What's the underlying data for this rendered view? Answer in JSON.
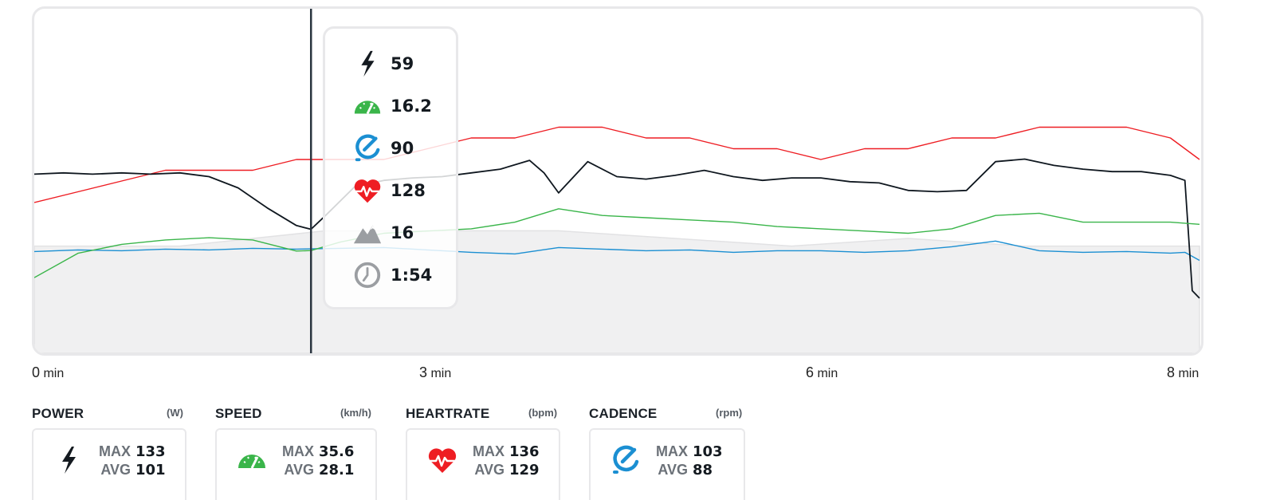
{
  "chart_data": {
    "type": "line",
    "x_unit": "min",
    "xlim": [
      0,
      8
    ],
    "x_ticks": [
      {
        "value": 0,
        "label": "0",
        "unit": "min"
      },
      {
        "value": 3,
        "label": "3",
        "unit": "min"
      },
      {
        "value": 6,
        "label": "6",
        "unit": "min"
      },
      {
        "value": 8,
        "label": "8",
        "unit": "min"
      }
    ],
    "cursor_x": 1.9,
    "series": [
      {
        "key": "heartrate",
        "color": "#ee1d23",
        "x": [
          0,
          0.3,
          0.6,
          0.9,
          1.2,
          1.5,
          1.8,
          2.1,
          2.4,
          2.7,
          3.0,
          3.3,
          3.6,
          3.9,
          4.2,
          4.5,
          4.8,
          5.1,
          5.4,
          5.7,
          6.0,
          6.3,
          6.6,
          6.9,
          7.2,
          7.5,
          7.8,
          8.0
        ],
        "y": [
          124,
          125,
          126,
          127,
          127,
          127,
          128,
          128,
          128,
          129,
          130,
          130,
          131,
          131,
          130,
          130,
          129,
          129,
          128,
          129,
          129,
          130,
          130,
          131,
          131,
          131,
          130,
          128
        ]
      },
      {
        "key": "cadence",
        "color": "#1b8fd2",
        "x": [
          0,
          0.3,
          0.6,
          0.9,
          1.2,
          1.5,
          1.8,
          2.1,
          2.4,
          2.7,
          3.0,
          3.3,
          3.6,
          3.9,
          4.2,
          4.5,
          4.8,
          5.1,
          5.4,
          5.7,
          6.0,
          6.3,
          6.6,
          6.9,
          7.2,
          7.5,
          7.8,
          7.9,
          8.0
        ],
        "y": [
          87,
          89,
          88,
          90,
          89,
          91,
          90,
          91,
          92,
          89,
          86,
          84,
          92,
          90,
          88,
          89,
          86,
          88,
          88,
          86,
          88,
          93,
          100,
          88,
          86,
          87,
          85,
          86,
          76
        ]
      },
      {
        "key": "power",
        "color": "#0f171f",
        "x": [
          0,
          0.2,
          0.4,
          0.6,
          0.8,
          1.0,
          1.2,
          1.4,
          1.6,
          1.8,
          1.9,
          2.0,
          2.2,
          2.4,
          2.6,
          2.8,
          3.0,
          3.2,
          3.4,
          3.5,
          3.6,
          3.8,
          4.0,
          4.2,
          4.4,
          4.6,
          4.8,
          5.0,
          5.2,
          5.4,
          5.6,
          5.8,
          6.0,
          6.2,
          6.4,
          6.6,
          6.8,
          7.0,
          7.2,
          7.4,
          7.6,
          7.8,
          7.9,
          7.95,
          8.0
        ],
        "y": [
          103,
          104,
          103,
          104,
          103,
          104,
          101,
          92,
          76,
          62,
          59,
          70,
          93,
          98,
          100,
          101,
          104,
          107,
          114,
          104,
          88,
          113,
          101,
          99,
          102,
          106,
          101,
          98,
          100,
          100,
          97,
          96,
          90,
          89,
          90,
          113,
          115,
          110,
          107,
          105,
          105,
          102,
          98,
          10,
          4
        ]
      },
      {
        "key": "speed",
        "color": "#3ab54a",
        "x": [
          0,
          0.3,
          0.6,
          0.9,
          1.2,
          1.5,
          1.8,
          1.9,
          2.1,
          2.4,
          2.7,
          3.0,
          3.3,
          3.6,
          3.9,
          4.2,
          4.5,
          4.8,
          5.1,
          5.4,
          5.7,
          6.0,
          6.3,
          6.6,
          6.9,
          7.2,
          7.5,
          7.8,
          8.0
        ],
        "y": [
          4,
          15,
          19,
          21,
          22,
          21,
          16,
          16.2,
          20,
          24,
          25,
          26,
          29,
          35,
          32,
          31,
          30,
          29,
          27,
          26,
          25,
          24,
          26,
          32,
          33,
          29,
          29,
          29,
          28
        ]
      }
    ],
    "elevation": {
      "key": "elevation",
      "color": "#f0f0f1",
      "x": [
        0,
        0.5,
        1.0,
        1.5,
        2.0,
        2.4,
        2.8,
        3.2,
        3.6,
        4.0,
        4.4,
        4.8,
        5.2,
        5.6,
        6.0,
        6.4,
        6.8,
        7.2,
        7.6,
        8.0
      ],
      "y": [
        14,
        14,
        14,
        15,
        16,
        16,
        16,
        16,
        16,
        15.5,
        15,
        14.5,
        14,
        14.5,
        15,
        14.5,
        14,
        14,
        14,
        14
      ]
    },
    "y_ranges": {
      "power": [
        -40,
        235
      ],
      "speed": [
        -30,
        125
      ],
      "cadence": [
        -40,
        390
      ],
      "heartrate": [
        110,
        142
      ],
      "elevation": [
        0,
        45
      ]
    }
  },
  "tooltip": {
    "power": "59",
    "speed": "16.2",
    "cadence": "90",
    "heartrate": "128",
    "elevation": "16",
    "time": "1:54"
  },
  "colors": {
    "power": "#0f171f",
    "speed": "#3ab54a",
    "cadence": "#1b8fd2",
    "heartrate": "#ee1d23",
    "elevation": "#9b9ea2"
  },
  "stats": [
    {
      "title": "POWER",
      "unit": "(W)",
      "icon": "bolt-icon",
      "max_label": "MAX",
      "max": "133",
      "avg_label": "AVG",
      "avg": "101"
    },
    {
      "title": "SPEED",
      "unit": "(km/h)",
      "icon": "speedometer-icon",
      "max_label": "MAX",
      "max": "35.6",
      "avg_label": "AVG",
      "avg": "28.1"
    },
    {
      "title": "HEARTRATE",
      "unit": "(bpm)",
      "icon": "heart-pulse-icon",
      "max_label": "MAX",
      "max": "136",
      "avg_label": "AVG",
      "avg": "129"
    },
    {
      "title": "CADENCE",
      "unit": "(rpm)",
      "icon": "cadence-icon",
      "max_label": "MAX",
      "max": "103",
      "avg_label": "AVG",
      "avg": "88"
    }
  ]
}
